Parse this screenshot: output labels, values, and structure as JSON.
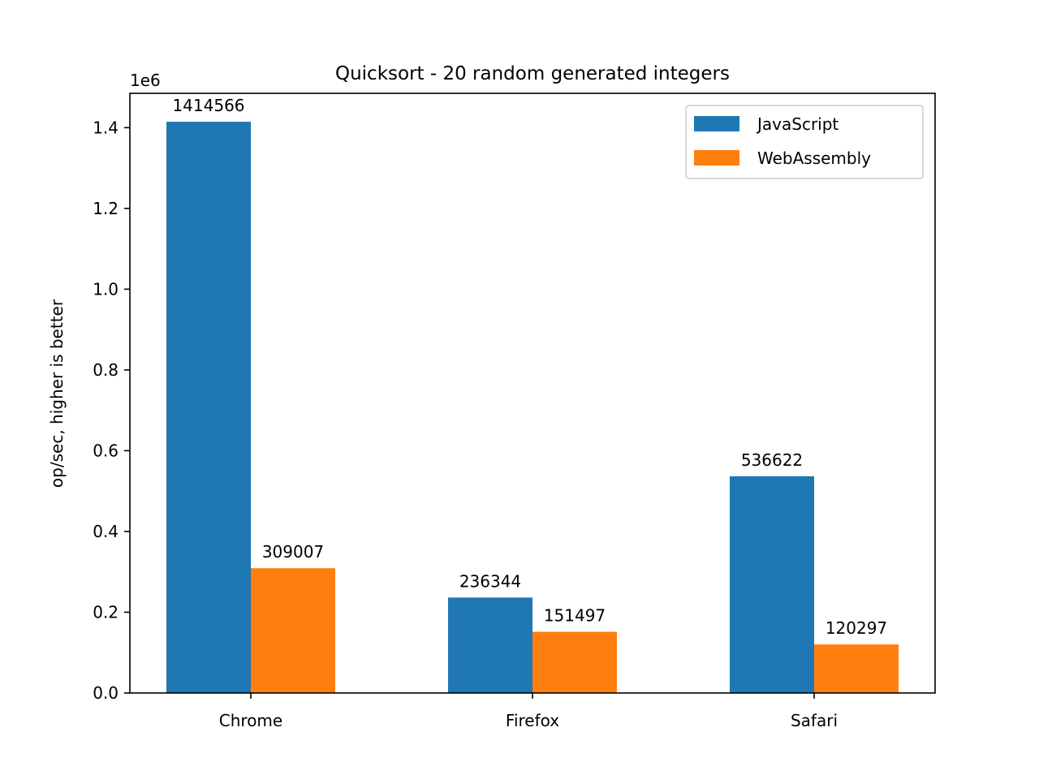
{
  "chart_data": {
    "type": "bar",
    "title": "Quicksort - 20 random generated integers",
    "xlabel": "",
    "ylabel": "op/sec, higher is better",
    "y_offset_label": "1e6",
    "y_scale": 1000000,
    "ylim": [
      0,
      1485000
    ],
    "y_ticks": [
      0,
      200000,
      400000,
      600000,
      800000,
      1000000,
      1200000,
      1400000
    ],
    "y_tick_labels": [
      "0.0",
      "0.2",
      "0.4",
      "0.6",
      "0.8",
      "1.0",
      "1.2",
      "1.4"
    ],
    "categories": [
      "Chrome",
      "Firefox",
      "Safari"
    ],
    "series": [
      {
        "name": "JavaScript",
        "color": "#1f77b4",
        "values": [
          1414566,
          236344,
          536622
        ],
        "labels": [
          "1414566",
          "236344",
          "536622"
        ]
      },
      {
        "name": "WebAssembly",
        "color": "#ff7f0e",
        "values": [
          309007,
          151497,
          120297
        ],
        "labels": [
          "309007",
          "151497",
          "120297"
        ]
      }
    ],
    "legend_position": "top-right",
    "grid": false
  }
}
